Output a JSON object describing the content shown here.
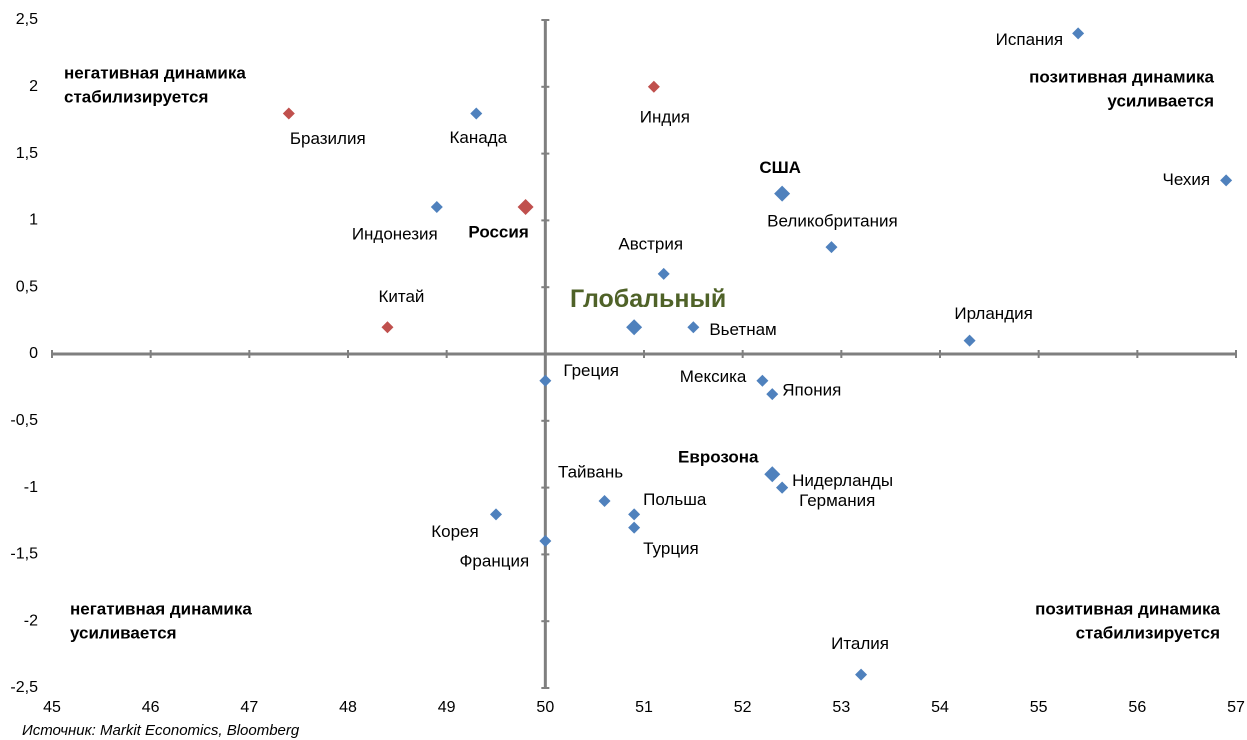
{
  "chart_data": {
    "type": "scatter",
    "annotations": [
      "негативная динамика",
      "стабилизируется",
      "позитивная динамика",
      "усиливается",
      "негативная динамика",
      "усиливается",
      "позитивная динамика",
      "стабилизируется"
    ],
    "source": "Источник: Markit Economics, Bloomberg",
    "xlim": [
      45,
      57
    ],
    "xticks": [
      45,
      46,
      47,
      48,
      49,
      50,
      51,
      52,
      53,
      54,
      55,
      56,
      57
    ],
    "ylim": [
      -2.5,
      2.5
    ],
    "yticks": [
      {
        "value": 2.5,
        "label": "2,5"
      },
      2,
      {
        "value": 1.5,
        "label": "1,5"
      },
      1,
      {
        "value": 0.5,
        "label": "0,5"
      },
      0,
      {
        "value": -0.5,
        "label": "-0,5"
      },
      -1,
      {
        "value": -1.5,
        "label": "-1,5"
      },
      -2,
      {
        "value": -2.5,
        "label": "-2,5"
      }
    ],
    "points": [
      {
        "name": "Испания",
        "x": 55.4,
        "y": 2.4,
        "color": "#4f81bd"
      },
      {
        "name": "Индия",
        "x": 51.1,
        "y": 2.0,
        "color": "#c0504d"
      },
      {
        "name": "Бразилия",
        "x": 47.4,
        "y": 1.8,
        "color": "#c0504d"
      },
      {
        "name": "Канада",
        "x": 49.3,
        "y": 1.8,
        "color": "#4f81bd"
      },
      {
        "name": "США",
        "x": 52.4,
        "y": 1.2,
        "color": "#4f81bd"
      },
      {
        "name": "Чехия",
        "x": 56.9,
        "y": 1.3,
        "color": "#4f81bd"
      },
      {
        "name": "Индонезия",
        "x": 48.9,
        "y": 1.1,
        "color": "#4f81bd"
      },
      {
        "name": "Россия",
        "x": 49.8,
        "y": 1.1,
        "color": "#c0504d"
      },
      {
        "name": "Великобритания",
        "x": 52.9,
        "y": 0.8,
        "color": "#4f81bd"
      },
      {
        "name": "Австрия",
        "x": 51.2,
        "y": 0.6,
        "color": "#4f81bd"
      },
      {
        "name": "Китай",
        "x": 48.4,
        "y": 0.2,
        "color": "#c0504d"
      },
      {
        "name": "Глобальный",
        "x": 50.9,
        "y": 0.2,
        "color": "#4f81bd"
      },
      {
        "name": "Вьетнам",
        "x": 51.5,
        "y": 0.2,
        "color": "#4f81bd"
      },
      {
        "name": "Ирландия",
        "x": 54.3,
        "y": 0.1,
        "color": "#4f81bd"
      },
      {
        "name": "Греция",
        "x": 50.0,
        "y": -0.2,
        "color": "#4f81bd"
      },
      {
        "name": "Мексика",
        "x": 52.2,
        "y": -0.2,
        "color": "#4f81bd"
      },
      {
        "name": "Япония",
        "x": 52.3,
        "y": -0.3,
        "color": "#4f81bd"
      },
      {
        "name": "Еврозона",
        "x": 52.3,
        "y": -0.9,
        "color": "#4f81bd"
      },
      {
        "name": "Нидерланды",
        "x": 52.4,
        "y": -1.0,
        "color": "#4f81bd"
      },
      {
        "name": "Германия",
        "x": 52.4,
        "y": -1.0,
        "color": "#4f81bd"
      },
      {
        "name": "Тайвань",
        "x": 50.6,
        "y": -1.1,
        "color": "#4f81bd"
      },
      {
        "name": "Польша",
        "x": 50.9,
        "y": -1.2,
        "color": "#4f81bd"
      },
      {
        "name": "Турция",
        "x": 50.9,
        "y": -1.3,
        "color": "#4f81bd"
      },
      {
        "name": "Корея",
        "x": 49.5,
        "y": -1.2,
        "color": "#4f81bd"
      },
      {
        "name": "Франция",
        "x": 50.0,
        "y": -1.4,
        "color": "#4f81bd"
      },
      {
        "name": "Италия",
        "x": 53.2,
        "y": -2.4,
        "color": "#4f81bd"
      }
    ]
  }
}
